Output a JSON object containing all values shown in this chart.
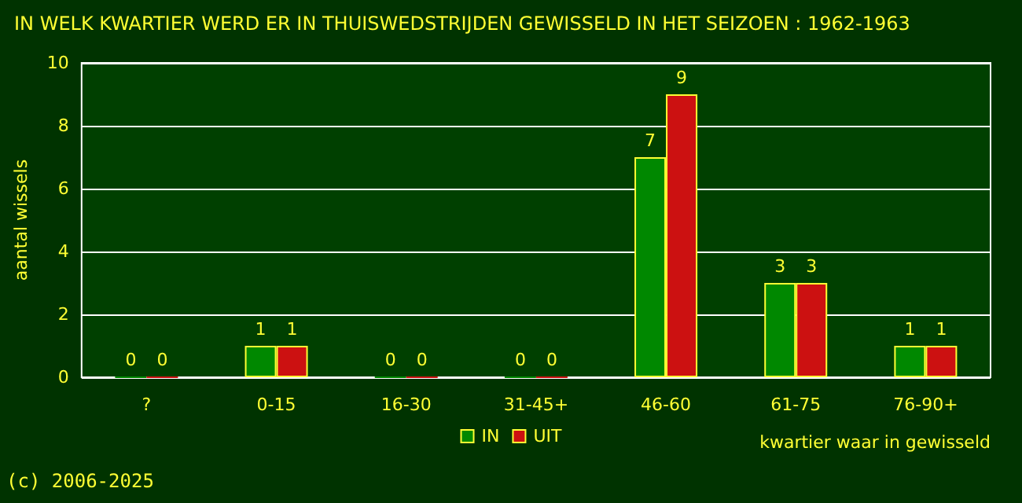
{
  "chart_data": {
    "type": "bar",
    "title": "IN WELK KWARTIER WERD ER IN THUISWEDSTRIJDEN GEWISSELD IN HET SEIZOEN : 1962-1963",
    "xlabel": "kwartier waar in gewisseld",
    "ylabel": "aantal wissels",
    "categories": [
      "?",
      "0-15",
      "16-30",
      "31-45+",
      "46-60",
      "61-75",
      "76-90+"
    ],
    "series": [
      {
        "name": "IN",
        "color": "#008800",
        "values": [
          0,
          1,
          0,
          0,
          7,
          3,
          1
        ]
      },
      {
        "name": "UIT",
        "color": "#cc1111",
        "values": [
          0,
          1,
          0,
          0,
          9,
          3,
          1
        ]
      }
    ],
    "ylim": [
      0,
      10
    ],
    "yticks": [
      0,
      2,
      4,
      6,
      8,
      10
    ],
    "grid": "y",
    "legend": "bottom",
    "data_labels": true,
    "annotations": [
      "(c) 2006-2025"
    ]
  }
}
